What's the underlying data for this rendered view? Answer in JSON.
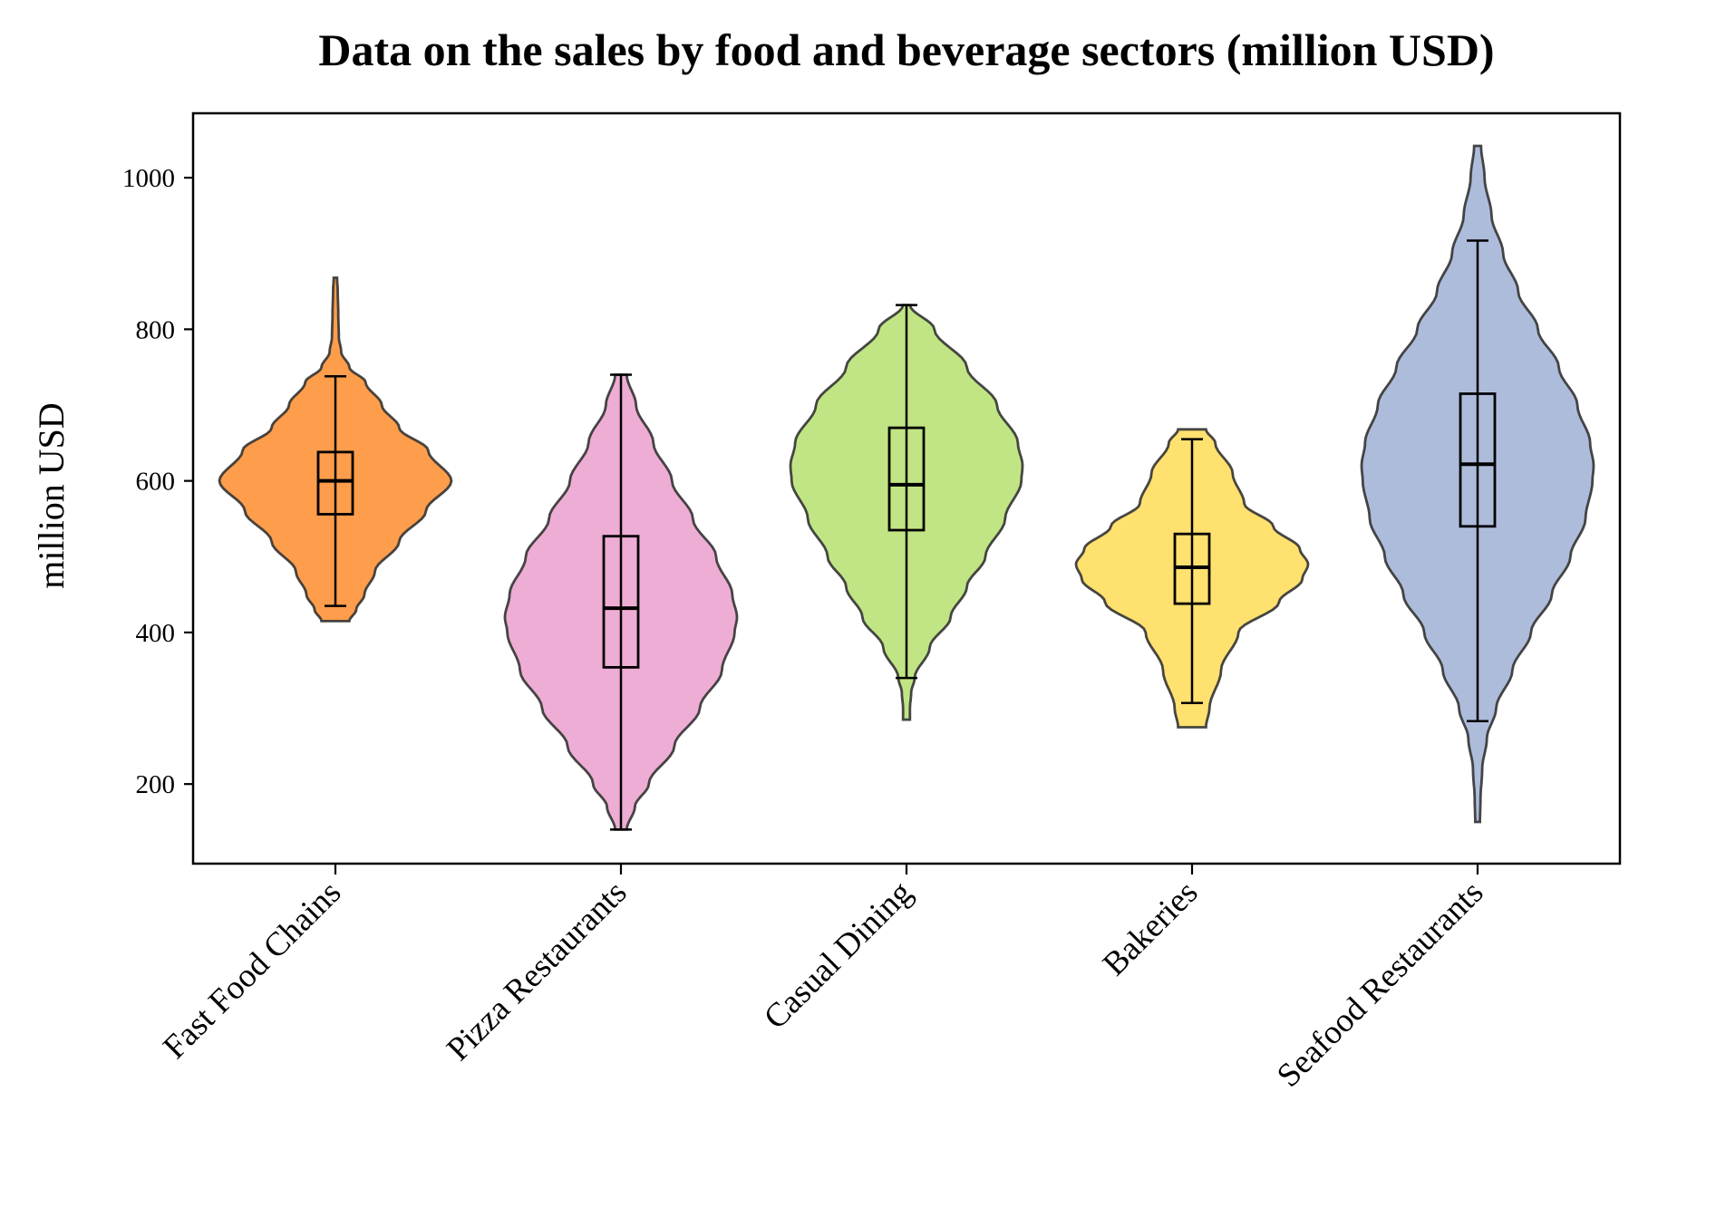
{
  "chart_data": {
    "type": "violin",
    "title": "Data on the sales by food and beverage sectors (million USD)",
    "xlabel": "",
    "ylabel": "million USD",
    "ylim": [
      95,
      1085
    ],
    "yticks": [
      200,
      400,
      600,
      800,
      1000
    ],
    "grid": false,
    "legend": "none",
    "categories": [
      "Fast Food Chains",
      "Pizza Restaurants",
      "Casual Dining",
      "Bakeries",
      "Seafood Restaurants"
    ],
    "series": [
      {
        "category": "Fast Food Chains",
        "color": "#fe9d4b",
        "min": 415,
        "max": 868,
        "whisker_low": 435,
        "q1": 556,
        "median": 600,
        "q3": 638,
        "whisker_high": 738,
        "density": [
          [
            415,
            0.12
          ],
          [
            430,
            0.18
          ],
          [
            450,
            0.25
          ],
          [
            480,
            0.34
          ],
          [
            520,
            0.55
          ],
          [
            560,
            0.78
          ],
          [
            600,
            1.0
          ],
          [
            640,
            0.8
          ],
          [
            670,
            0.55
          ],
          [
            700,
            0.4
          ],
          [
            730,
            0.26
          ],
          [
            750,
            0.12
          ],
          [
            770,
            0.05
          ],
          [
            790,
            0.03
          ],
          [
            820,
            0.025
          ],
          [
            850,
            0.02
          ],
          [
            868,
            0.015
          ]
        ]
      },
      {
        "category": "Pizza Restaurants",
        "color": "#eeadd4",
        "min": 140,
        "max": 740,
        "whisker_low": 140,
        "q1": 354,
        "median": 432,
        "q3": 527,
        "whisker_high": 740,
        "density": [
          [
            140,
            0.05
          ],
          [
            170,
            0.12
          ],
          [
            200,
            0.24
          ],
          [
            250,
            0.46
          ],
          [
            300,
            0.68
          ],
          [
            350,
            0.87
          ],
          [
            400,
            0.98
          ],
          [
            420,
            1.0
          ],
          [
            450,
            0.96
          ],
          [
            500,
            0.82
          ],
          [
            550,
            0.62
          ],
          [
            600,
            0.44
          ],
          [
            650,
            0.28
          ],
          [
            700,
            0.13
          ],
          [
            740,
            0.05
          ]
        ]
      },
      {
        "category": "Casual Dining",
        "color": "#c1e584",
        "min": 285,
        "max": 832,
        "whisker_low": 340,
        "q1": 535,
        "median": 595,
        "q3": 670,
        "whisker_high": 832,
        "density": [
          [
            285,
            0.03
          ],
          [
            300,
            0.03
          ],
          [
            320,
            0.04
          ],
          [
            340,
            0.07
          ],
          [
            380,
            0.2
          ],
          [
            420,
            0.38
          ],
          [
            460,
            0.52
          ],
          [
            500,
            0.68
          ],
          [
            550,
            0.85
          ],
          [
            600,
            0.99
          ],
          [
            620,
            1.0
          ],
          [
            650,
            0.96
          ],
          [
            700,
            0.78
          ],
          [
            750,
            0.52
          ],
          [
            800,
            0.24
          ],
          [
            832,
            0.03
          ]
        ]
      },
      {
        "category": "Bakeries",
        "color": "#ffe16f",
        "min": 275,
        "max": 668,
        "whisker_low": 307,
        "q1": 438,
        "median": 486,
        "q3": 530,
        "whisker_high": 655,
        "density": [
          [
            275,
            0.12
          ],
          [
            300,
            0.15
          ],
          [
            350,
            0.25
          ],
          [
            400,
            0.4
          ],
          [
            440,
            0.75
          ],
          [
            470,
            0.95
          ],
          [
            490,
            1.0
          ],
          [
            510,
            0.93
          ],
          [
            540,
            0.7
          ],
          [
            570,
            0.45
          ],
          [
            610,
            0.35
          ],
          [
            650,
            0.2
          ],
          [
            668,
            0.12
          ]
        ]
      },
      {
        "category": "Seafood Restaurants",
        "color": "#aebcdb",
        "min": 150,
        "max": 1042,
        "whisker_low": 283,
        "q1": 540,
        "median": 622,
        "q3": 715,
        "whisker_high": 917,
        "density": [
          [
            150,
            0.02
          ],
          [
            180,
            0.025
          ],
          [
            220,
            0.04
          ],
          [
            260,
            0.08
          ],
          [
            300,
            0.16
          ],
          [
            350,
            0.3
          ],
          [
            400,
            0.46
          ],
          [
            450,
            0.64
          ],
          [
            500,
            0.8
          ],
          [
            550,
            0.93
          ],
          [
            600,
            0.99
          ],
          [
            620,
            1.0
          ],
          [
            650,
            0.97
          ],
          [
            700,
            0.86
          ],
          [
            750,
            0.7
          ],
          [
            800,
            0.52
          ],
          [
            850,
            0.35
          ],
          [
            900,
            0.22
          ],
          [
            950,
            0.12
          ],
          [
            1000,
            0.06
          ],
          [
            1042,
            0.03
          ]
        ]
      }
    ]
  }
}
